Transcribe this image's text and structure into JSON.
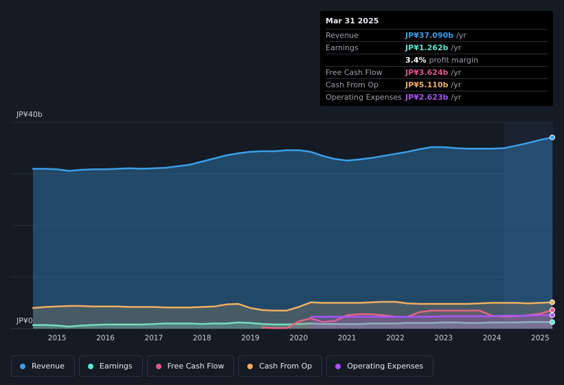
{
  "tooltip": {
    "date": "Mar 31 2025",
    "rows": [
      {
        "label": "Revenue",
        "value": "JP¥37.090b",
        "unit": "/yr",
        "color": "#3b9ee8"
      },
      {
        "label": "Earnings",
        "value": "JP¥1.262b",
        "unit": "/yr",
        "color": "#5ee5d1"
      },
      {
        "label": "",
        "value": "3.4%",
        "unit": "profit margin",
        "color": "#ffffff"
      },
      {
        "label": "Free Cash Flow",
        "value": "JP¥3.624b",
        "unit": "/yr",
        "color": "#e0568c"
      },
      {
        "label": "Cash From Op",
        "value": "JP¥5.110b",
        "unit": "/yr",
        "color": "#f0b060"
      },
      {
        "label": "Operating Expenses",
        "value": "JP¥2.623b",
        "unit": "/yr",
        "color": "#a855f7"
      }
    ]
  },
  "chart_data": {
    "type": "line",
    "title": "",
    "ylabel_top": "JP¥40b",
    "ylabel_bottom": "JP¥0",
    "ylim": [
      0,
      40
    ],
    "xlim": [
      2014.5,
      2025.25
    ],
    "x_ticks": [
      "2015",
      "2016",
      "2017",
      "2018",
      "2019",
      "2020",
      "2021",
      "2022",
      "2023",
      "2024",
      "2025"
    ],
    "x_tick_values": [
      2015,
      2016,
      2017,
      2018,
      2019,
      2020,
      2021,
      2022,
      2023,
      2024,
      2025
    ],
    "highlight_from": 2024.25,
    "series": [
      {
        "name": "Revenue",
        "color": "#3b9ee8",
        "fill": true,
        "points": [
          [
            2014.5,
            31.0
          ],
          [
            2014.75,
            31.0
          ],
          [
            2015,
            30.9
          ],
          [
            2015.25,
            30.6
          ],
          [
            2015.5,
            30.8
          ],
          [
            2015.75,
            30.9
          ],
          [
            2016,
            30.9
          ],
          [
            2016.25,
            31.0
          ],
          [
            2016.5,
            31.1
          ],
          [
            2016.75,
            31.0
          ],
          [
            2017,
            31.1
          ],
          [
            2017.25,
            31.2
          ],
          [
            2017.5,
            31.5
          ],
          [
            2017.75,
            31.8
          ],
          [
            2018,
            32.4
          ],
          [
            2018.25,
            33.0
          ],
          [
            2018.5,
            33.6
          ],
          [
            2018.75,
            34.0
          ],
          [
            2019,
            34.3
          ],
          [
            2019.25,
            34.4
          ],
          [
            2019.5,
            34.4
          ],
          [
            2019.75,
            34.6
          ],
          [
            2020,
            34.6
          ],
          [
            2020.25,
            34.3
          ],
          [
            2020.5,
            33.5
          ],
          [
            2020.75,
            32.9
          ],
          [
            2021,
            32.6
          ],
          [
            2021.25,
            32.8
          ],
          [
            2021.5,
            33.1
          ],
          [
            2021.75,
            33.5
          ],
          [
            2022,
            33.9
          ],
          [
            2022.25,
            34.3
          ],
          [
            2022.5,
            34.8
          ],
          [
            2022.75,
            35.2
          ],
          [
            2023,
            35.2
          ],
          [
            2023.25,
            35.0
          ],
          [
            2023.5,
            34.9
          ],
          [
            2023.75,
            34.9
          ],
          [
            2024,
            34.9
          ],
          [
            2024.25,
            35.0
          ],
          [
            2024.5,
            35.5
          ],
          [
            2024.75,
            36.0
          ],
          [
            2025,
            36.6
          ],
          [
            2025.25,
            37.09
          ]
        ]
      },
      {
        "name": "Earnings",
        "color": "#5ee5d1",
        "fill": true,
        "points": [
          [
            2014.5,
            0.7
          ],
          [
            2014.75,
            0.7
          ],
          [
            2015,
            0.6
          ],
          [
            2015.25,
            0.4
          ],
          [
            2015.5,
            0.6
          ],
          [
            2015.75,
            0.7
          ],
          [
            2016,
            0.8
          ],
          [
            2016.25,
            0.8
          ],
          [
            2016.5,
            0.8
          ],
          [
            2016.75,
            0.8
          ],
          [
            2017,
            0.9
          ],
          [
            2017.25,
            1.0
          ],
          [
            2017.5,
            1.0
          ],
          [
            2017.75,
            1.0
          ],
          [
            2018,
            0.9
          ],
          [
            2018.25,
            1.0
          ],
          [
            2018.5,
            1.0
          ],
          [
            2018.75,
            1.2
          ],
          [
            2019,
            1.1
          ],
          [
            2019.25,
            0.9
          ],
          [
            2019.5,
            0.8
          ],
          [
            2019.75,
            0.8
          ],
          [
            2020,
            0.9
          ],
          [
            2020.25,
            1.0
          ],
          [
            2020.5,
            0.9
          ],
          [
            2020.75,
            0.9
          ],
          [
            2021,
            0.9
          ],
          [
            2021.25,
            0.9
          ],
          [
            2021.5,
            1.0
          ],
          [
            2021.75,
            1.0
          ],
          [
            2022,
            1.0
          ],
          [
            2022.25,
            1.1
          ],
          [
            2022.5,
            1.1
          ],
          [
            2022.75,
            1.1
          ],
          [
            2023,
            1.2
          ],
          [
            2023.25,
            1.2
          ],
          [
            2023.5,
            1.1
          ],
          [
            2023.75,
            1.1
          ],
          [
            2024,
            1.2
          ],
          [
            2024.25,
            1.2
          ],
          [
            2024.5,
            1.2
          ],
          [
            2024.75,
            1.3
          ],
          [
            2025,
            1.3
          ],
          [
            2025.25,
            1.262
          ]
        ]
      },
      {
        "name": "Free Cash Flow",
        "color": "#e0568c",
        "fill": true,
        "points": [
          [
            2019.25,
            0.2
          ],
          [
            2019.5,
            0.1
          ],
          [
            2019.75,
            0.1
          ],
          [
            2020,
            1.4
          ],
          [
            2020.25,
            2.0
          ],
          [
            2020.5,
            1.3
          ],
          [
            2020.75,
            1.5
          ],
          [
            2021,
            2.6
          ],
          [
            2021.25,
            2.8
          ],
          [
            2021.5,
            2.8
          ],
          [
            2021.75,
            2.6
          ],
          [
            2022,
            2.3
          ],
          [
            2022.25,
            2.3
          ],
          [
            2022.5,
            3.2
          ],
          [
            2022.75,
            3.5
          ],
          [
            2023,
            3.5
          ],
          [
            2023.25,
            3.5
          ],
          [
            2023.5,
            3.5
          ],
          [
            2023.75,
            3.5
          ],
          [
            2024,
            2.5
          ],
          [
            2024.25,
            2.3
          ],
          [
            2024.5,
            2.4
          ],
          [
            2024.75,
            2.6
          ],
          [
            2025,
            2.9
          ],
          [
            2025.25,
            3.624
          ]
        ]
      },
      {
        "name": "Cash From Op",
        "color": "#f0b060",
        "fill": true,
        "points": [
          [
            2014.5,
            4.0
          ],
          [
            2014.75,
            4.2
          ],
          [
            2015,
            4.3
          ],
          [
            2015.25,
            4.4
          ],
          [
            2015.5,
            4.4
          ],
          [
            2015.75,
            4.3
          ],
          [
            2016,
            4.3
          ],
          [
            2016.25,
            4.3
          ],
          [
            2016.5,
            4.2
          ],
          [
            2016.75,
            4.2
          ],
          [
            2017,
            4.2
          ],
          [
            2017.25,
            4.1
          ],
          [
            2017.5,
            4.1
          ],
          [
            2017.75,
            4.1
          ],
          [
            2018,
            4.2
          ],
          [
            2018.25,
            4.3
          ],
          [
            2018.5,
            4.7
          ],
          [
            2018.75,
            4.8
          ],
          [
            2019,
            4.0
          ],
          [
            2019.25,
            3.6
          ],
          [
            2019.5,
            3.5
          ],
          [
            2019.75,
            3.5
          ],
          [
            2020,
            4.2
          ],
          [
            2020.25,
            5.1
          ],
          [
            2020.5,
            5.0
          ],
          [
            2020.75,
            5.0
          ],
          [
            2021,
            5.0
          ],
          [
            2021.25,
            5.0
          ],
          [
            2021.5,
            5.1
          ],
          [
            2021.75,
            5.2
          ],
          [
            2022,
            5.2
          ],
          [
            2022.25,
            4.9
          ],
          [
            2022.5,
            4.8
          ],
          [
            2022.75,
            4.8
          ],
          [
            2023,
            4.8
          ],
          [
            2023.25,
            4.8
          ],
          [
            2023.5,
            4.8
          ],
          [
            2023.75,
            4.9
          ],
          [
            2024,
            5.0
          ],
          [
            2024.25,
            5.0
          ],
          [
            2024.5,
            5.0
          ],
          [
            2024.75,
            4.9
          ],
          [
            2025,
            5.0
          ],
          [
            2025.25,
            5.11
          ]
        ]
      },
      {
        "name": "Operating Expenses",
        "color": "#a855f7",
        "fill": true,
        "points": [
          [
            2020.25,
            2.3
          ],
          [
            2020.5,
            2.3
          ],
          [
            2020.75,
            2.3
          ],
          [
            2021,
            2.3
          ],
          [
            2021.25,
            2.3
          ],
          [
            2021.5,
            2.3
          ],
          [
            2021.75,
            2.3
          ],
          [
            2022,
            2.3
          ],
          [
            2022.25,
            2.3
          ],
          [
            2022.5,
            2.3
          ],
          [
            2022.75,
            2.3
          ],
          [
            2023,
            2.4
          ],
          [
            2023.25,
            2.4
          ],
          [
            2023.5,
            2.4
          ],
          [
            2023.75,
            2.4
          ],
          [
            2024,
            2.4
          ],
          [
            2024.25,
            2.5
          ],
          [
            2024.5,
            2.5
          ],
          [
            2024.75,
            2.5
          ],
          [
            2025,
            2.6
          ],
          [
            2025.25,
            2.623
          ]
        ]
      }
    ]
  },
  "legend": [
    {
      "label": "Revenue",
      "color": "#3b9ee8"
    },
    {
      "label": "Earnings",
      "color": "#5ee5d1"
    },
    {
      "label": "Free Cash Flow",
      "color": "#e0568c"
    },
    {
      "label": "Cash From Op",
      "color": "#f0b060"
    },
    {
      "label": "Operating Expenses",
      "color": "#a855f7"
    }
  ]
}
